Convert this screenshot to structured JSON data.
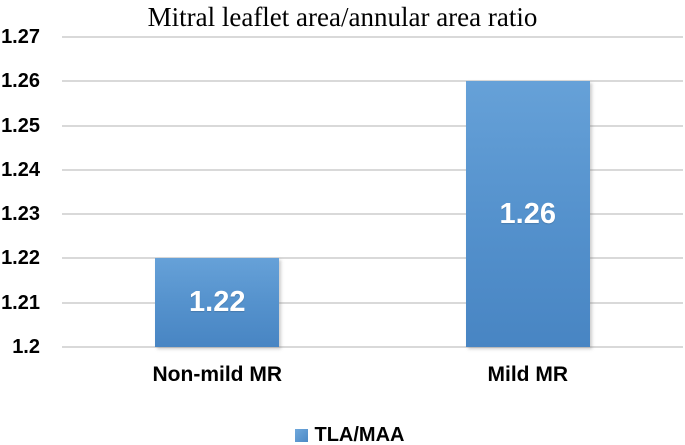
{
  "chart_data": {
    "type": "bar",
    "title": "Mitral leaflet area/annular area ratio",
    "categories": [
      "Non-mild MR",
      "Mild MR"
    ],
    "series": [
      {
        "name": "TLA/MAA",
        "values": [
          1.22,
          1.26
        ],
        "data_labels": [
          "1.22",
          "1.26"
        ]
      }
    ],
    "xlabel": "",
    "ylabel": "",
    "ylim": [
      1.2,
      1.27
    ],
    "ytick_step": 0.01,
    "yticks": [
      "1.27",
      "1.26",
      "1.25",
      "1.24",
      "1.23",
      "1.22",
      "1.21",
      "1.2"
    ],
    "grid": true,
    "legend_position": "bottom",
    "colors": {
      "bar_fill_top": "#66a1d8",
      "bar_fill_bottom": "#4885c3",
      "gridline": "#d9d9d9",
      "data_label_text": "#ffffff",
      "axis_text": "#000000",
      "background": "#ffffff"
    }
  }
}
